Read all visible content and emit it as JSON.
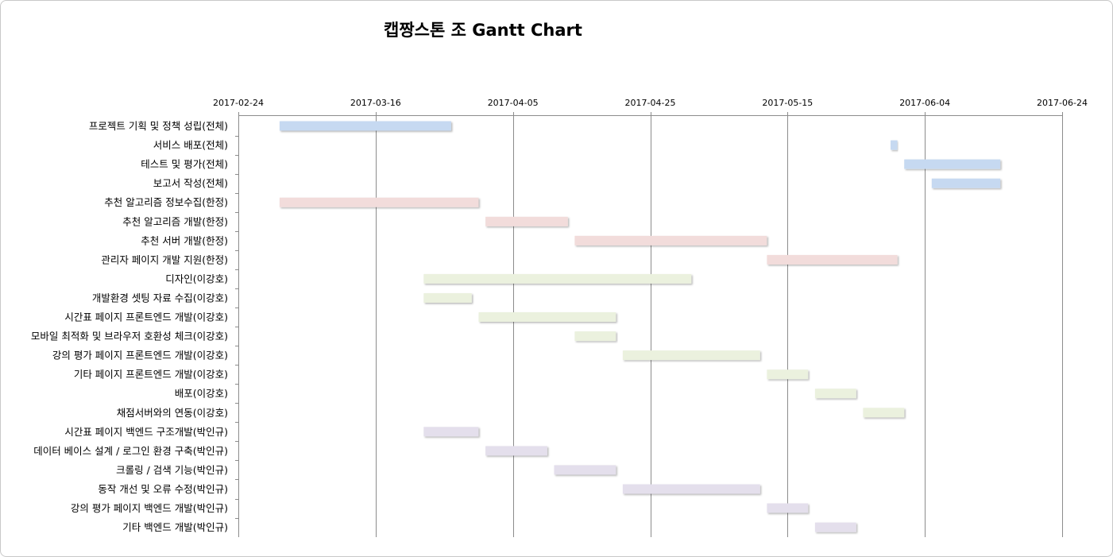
{
  "chart_data": {
    "type": "gantt",
    "title": "캡짱스톤 조 Gantt Chart",
    "x_range": [
      "2017-02-24",
      "2017-06-24"
    ],
    "x_ticks": [
      "2017-02-24",
      "2017-03-16",
      "2017-04-05",
      "2017-04-25",
      "2017-05-15",
      "2017-06-04",
      "2017-06-24"
    ],
    "grid": true,
    "colors": {
      "blue": "#c6d9f1",
      "red": "#f2dcdb",
      "green": "#ebf1de",
      "purple": "#e4dfec"
    },
    "tasks": [
      {
        "label": "프로젝트 기획 및 정책 성립(전체)",
        "start": "2017-03-02",
        "end": "2017-03-27",
        "color": "blue"
      },
      {
        "label": "서비스 배포(전체)",
        "start": "2017-05-30",
        "end": "2017-05-31",
        "color": "blue"
      },
      {
        "label": "테스트 및 평가(전체)",
        "start": "2017-06-01",
        "end": "2017-06-15",
        "color": "blue"
      },
      {
        "label": "보고서 작성(전체)",
        "start": "2017-06-05",
        "end": "2017-06-15",
        "color": "blue"
      },
      {
        "label": "추천 알고리즘 정보수집(한정)",
        "start": "2017-03-02",
        "end": "2017-03-31",
        "color": "red"
      },
      {
        "label": "추천 알고리즘 개발(한정)",
        "start": "2017-04-01",
        "end": "2017-04-13",
        "color": "red"
      },
      {
        "label": "추천 서버 개발(한정)",
        "start": "2017-04-14",
        "end": "2017-05-12",
        "color": "red"
      },
      {
        "label": "관리자 페이지 개발 지원(한정)",
        "start": "2017-05-12",
        "end": "2017-05-31",
        "color": "red"
      },
      {
        "label": "디자인(이강호)",
        "start": "2017-03-23",
        "end": "2017-05-01",
        "color": "green"
      },
      {
        "label": "개발환경 셋팅 자료 수집(이강호)",
        "start": "2017-03-23",
        "end": "2017-03-30",
        "color": "green"
      },
      {
        "label": "시간표 페이지 프론트엔드 개발(이강호)",
        "start": "2017-03-31",
        "end": "2017-04-20",
        "color": "green"
      },
      {
        "label": "모바일 최적화 및 브라우저 호환성 체크(이강호)",
        "start": "2017-04-14",
        "end": "2017-04-20",
        "color": "green"
      },
      {
        "label": "강의 평가 페이지 프론트엔드 개발(이강호)",
        "start": "2017-04-21",
        "end": "2017-05-11",
        "color": "green"
      },
      {
        "label": "기타 페이지 프론트엔드 개발(이강호)",
        "start": "2017-05-12",
        "end": "2017-05-18",
        "color": "green"
      },
      {
        "label": "배포(이강호)",
        "start": "2017-05-19",
        "end": "2017-05-25",
        "color": "green"
      },
      {
        "label": "채점서버와의 연동(이강호)",
        "start": "2017-05-26",
        "end": "2017-06-01",
        "color": "green"
      },
      {
        "label": "시간표 페이지 백엔드 구조개발(박인규)",
        "start": "2017-03-23",
        "end": "2017-03-31",
        "color": "purple"
      },
      {
        "label": "데이터 베이스 설계 / 로그인 환경 구축(박인규)",
        "start": "2017-04-01",
        "end": "2017-04-10",
        "color": "purple"
      },
      {
        "label": "크롤링 / 검색 기능(박인규)",
        "start": "2017-04-11",
        "end": "2017-04-20",
        "color": "purple"
      },
      {
        "label": "동작 개선 및 오류 수정(박인규)",
        "start": "2017-04-21",
        "end": "2017-05-11",
        "color": "purple"
      },
      {
        "label": "강의 평가 페이지 백엔드 개발(박인규)",
        "start": "2017-05-12",
        "end": "2017-05-18",
        "color": "purple"
      },
      {
        "label": "기타 백엔드 개발(박인규)",
        "start": "2017-05-19",
        "end": "2017-05-25",
        "color": "purple"
      }
    ]
  }
}
